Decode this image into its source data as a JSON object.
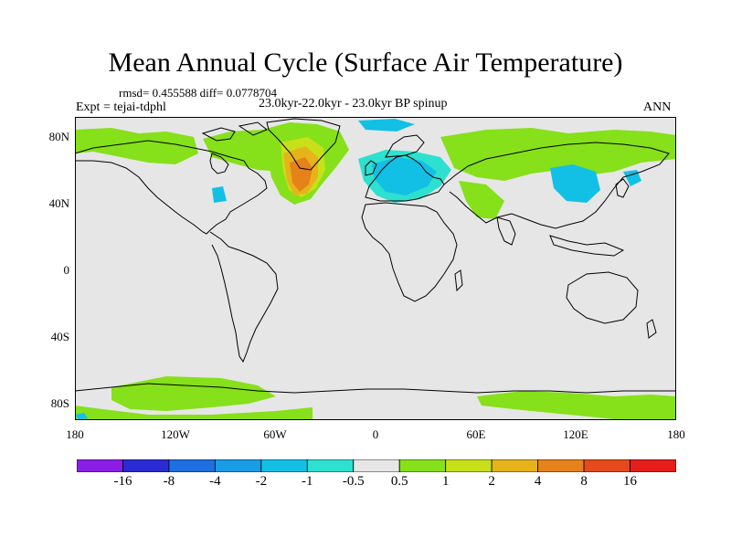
{
  "figure": {
    "title": "Mean Annual Cycle (Surface Air Temperature)",
    "stats_text": "rmsd= 0.455588 diff= 0.0778704",
    "experiment_text": "Expt = tejai-tdphl",
    "subtitle": "23.0kyr-22.0kyr - 23.0kyr BP spinup",
    "season": "ANN"
  },
  "axes": {
    "lat_ticks": [
      "80N",
      "40N",
      "0",
      "40S",
      "80S"
    ],
    "lon_ticks": [
      "180",
      "120W",
      "60W",
      "0",
      "60E",
      "120E",
      "180"
    ]
  },
  "colorbar": {
    "labels": [
      "-16",
      "-8",
      "-4",
      "-2",
      "-1",
      "-0.5",
      "0.5",
      "1",
      "2",
      "4",
      "8",
      "16"
    ],
    "colors": [
      "#8b1ee6",
      "#2b2bd6",
      "#1e6fe0",
      "#1a9be6",
      "#12c0e6",
      "#2ee0d0",
      "#e6e6e6",
      "#86e01a",
      "#c8e01a",
      "#e6b41a",
      "#e6821a",
      "#e64a1a",
      "#e61e1a"
    ]
  },
  "map_colors": {
    "ocean_bg": "#e6e6e6",
    "warm_weak": "#86e01a",
    "warm_mid": "#c8e01a",
    "warm_strong": "#e6b41a",
    "warm_hot": "#e6821a",
    "cool_weak": "#2ee0d0",
    "cool_mid": "#12c0e6",
    "coast": "#000000"
  }
}
